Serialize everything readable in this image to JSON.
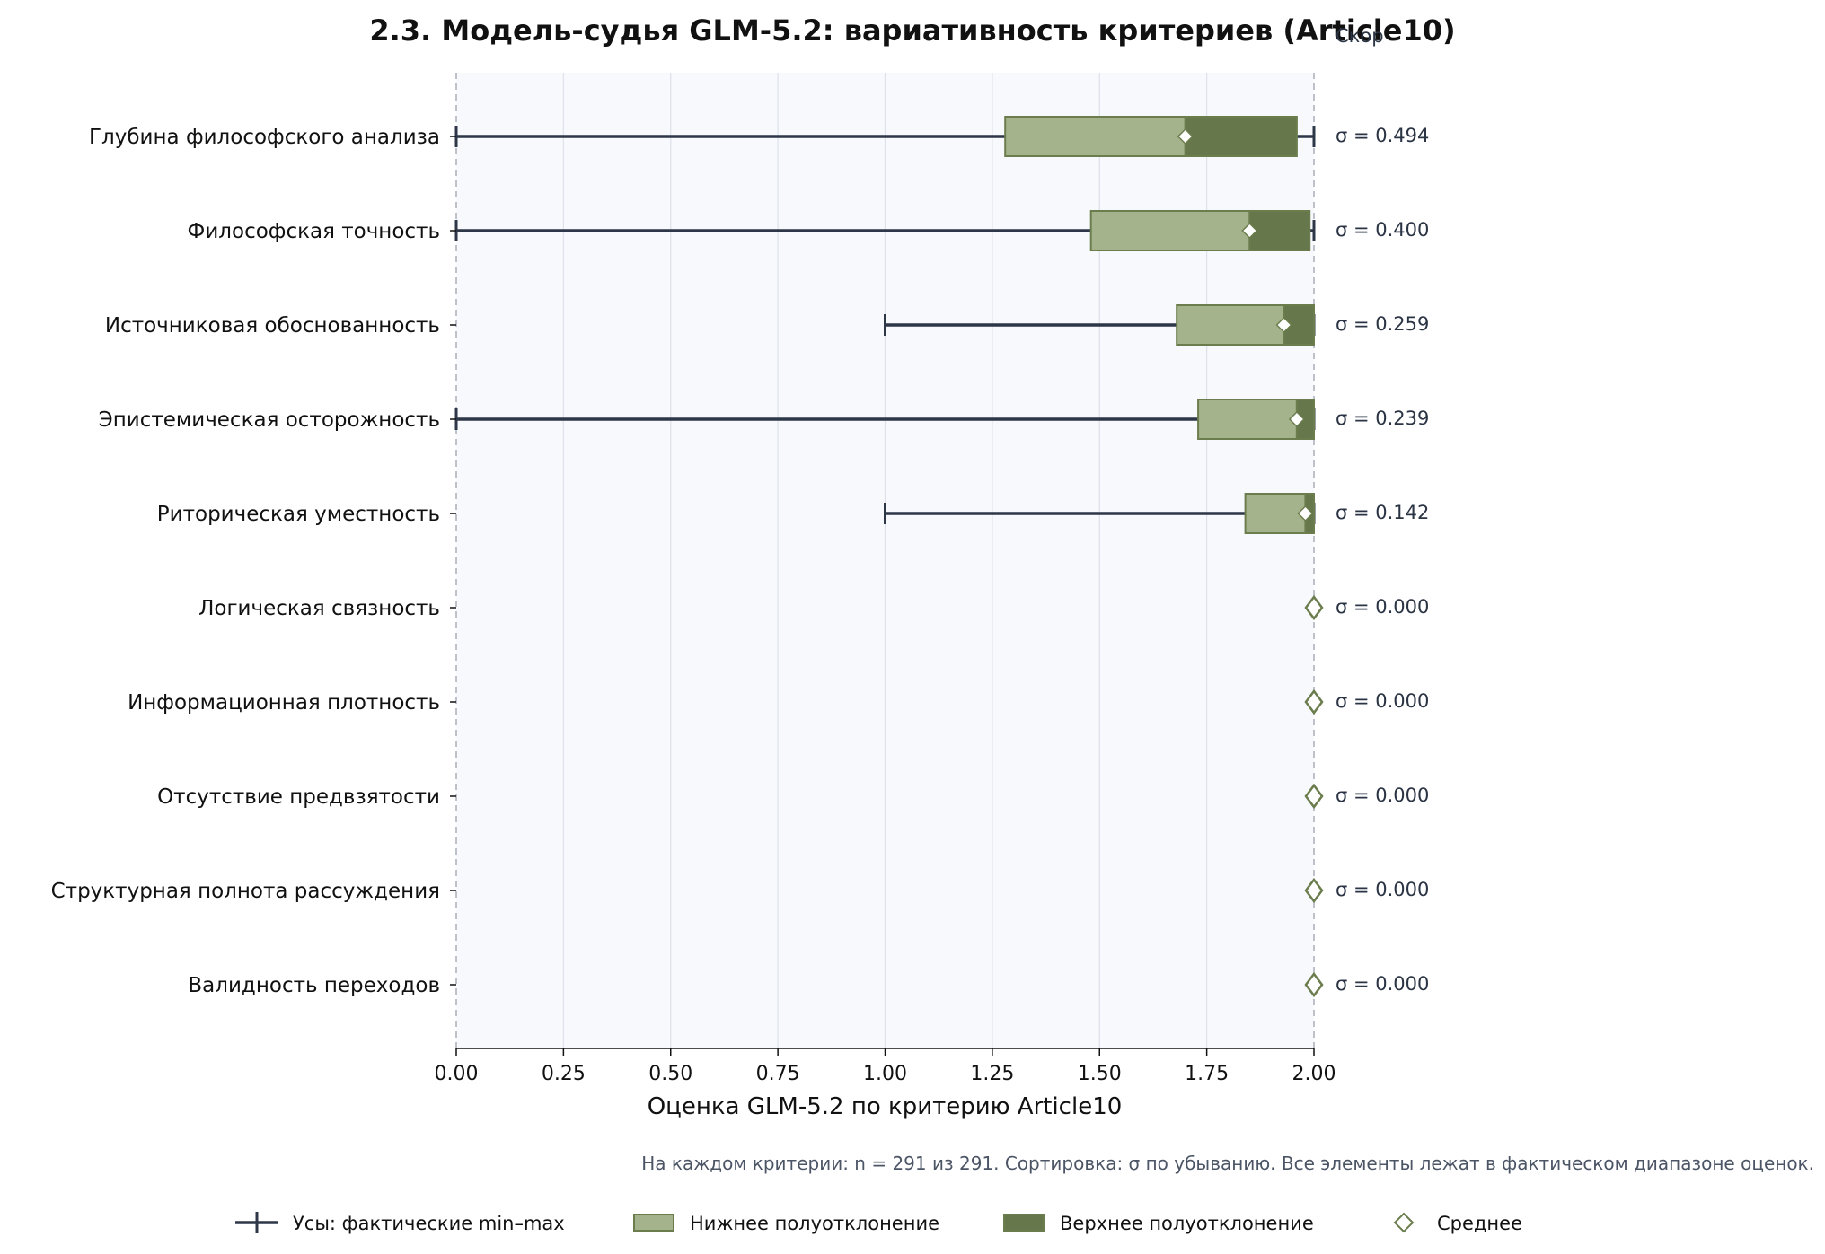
{
  "chart_data": {
    "type": "bar",
    "title": "2.3. Модель-судья GLM-5.2: вариативность критериев (Article10)",
    "corner_label": "Скор",
    "xlabel": "Оценка GLM-5.2 по критерию Article10",
    "xlim": [
      0,
      2
    ],
    "xticks": [
      0,
      0.25,
      0.5,
      0.75,
      1.0,
      1.25,
      1.5,
      1.75,
      2.0
    ],
    "xtick_labels": [
      "0.00",
      "0.25",
      "0.50",
      "0.75",
      "1.00",
      "1.25",
      "1.50",
      "1.75",
      "2.00"
    ],
    "grid": "vertical",
    "categories": [
      "Глубина философского анализа",
      "Философская точность",
      "Источниковая обоснованность",
      "Эпистемическая осторожность",
      "Риторическая уместность",
      "Логическая связность",
      "Информационная плотность",
      "Отсутствие предвзятости",
      "Структурная полнота рассуждения",
      "Валидность переходов"
    ],
    "series": [
      {
        "name": "Усы: фактические min–max",
        "min": [
          0,
          0,
          1,
          0,
          1,
          2,
          2,
          2,
          2,
          2
        ],
        "max": [
          2,
          2,
          2,
          2,
          2,
          2,
          2,
          2,
          2,
          2
        ]
      },
      {
        "name": "Нижнее полуотклонение",
        "low": [
          1.28,
          1.48,
          1.68,
          1.73,
          1.84,
          2,
          2,
          2,
          2,
          2
        ]
      },
      {
        "name": "Верхнее полуотклонение",
        "high": [
          1.96,
          1.99,
          2,
          2,
          2,
          2,
          2,
          2,
          2,
          2
        ]
      },
      {
        "name": "Среднее",
        "values": [
          1.7,
          1.85,
          1.93,
          1.96,
          1.98,
          2.0,
          2.0,
          2.0,
          2.0,
          2.0
        ]
      }
    ],
    "sigma_labels": [
      "σ = 0.494",
      "σ = 0.400",
      "σ = 0.259",
      "σ = 0.239",
      "σ = 0.142",
      "σ = 0.000",
      "σ = 0.000",
      "σ = 0.000",
      "σ = 0.000",
      "σ = 0.000"
    ],
    "footnote": "На каждом критерии: n = 291 из 291. Сортировка: σ по убыванию. Все элементы лежат в фактическом диапазоне оценок.",
    "legend_position": "bottom",
    "colors": {
      "whisker": "#2d3748",
      "lower_box": "#a5b38c",
      "upper_box": "#66784b",
      "box_edge": "#6b7d4d",
      "mean_marker_edge": "#6b7d4d",
      "plot_background": "#f7f9fd",
      "grid": "#dde1ea",
      "boundary": "#a9aeb8"
    }
  }
}
